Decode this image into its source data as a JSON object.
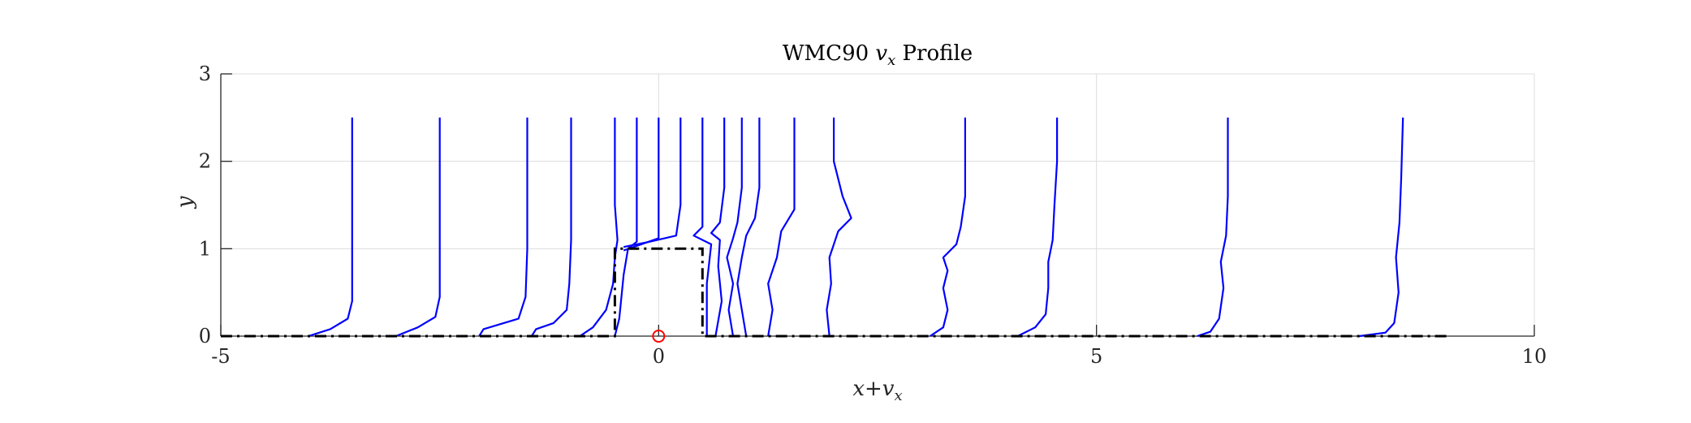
{
  "chart_data": {
    "type": "line",
    "title": "WMC90 v_x Profile",
    "title_parts": {
      "prefix": "WMC90",
      "var": "v",
      "sub": "x",
      "suffix": "Profile"
    },
    "xlabel": "x+v_x",
    "xlabel_parts": {
      "x": "x",
      "plus": "+",
      "var": "v",
      "sub": "x"
    },
    "ylabel": "y",
    "xlim": [
      -5,
      10
    ],
    "ylim": [
      0,
      3
    ],
    "xticks": [
      -5,
      0,
      5,
      10
    ],
    "yticks": [
      0,
      1,
      2,
      3
    ],
    "xtick_labels": [
      "-5",
      "0",
      "5",
      "10"
    ],
    "ytick_labels": [
      "0",
      "1",
      "2",
      "3"
    ],
    "grid": true,
    "colors": {
      "profiles": "#0000ff",
      "wall": "#000000",
      "origin_marker": "#ff0000",
      "grid": "#dcdcdc",
      "axes": "#262626"
    },
    "profiles": [
      {
        "x0": -3.5,
        "curve": [
          [
            -4.0,
            0.0
          ],
          [
            -3.75,
            0.08
          ],
          [
            -3.55,
            0.2
          ],
          [
            -3.5,
            0.4
          ],
          [
            -3.5,
            2.5
          ]
        ]
      },
      {
        "x0": -2.5,
        "curve": [
          [
            -3.0,
            0.0
          ],
          [
            -2.75,
            0.1
          ],
          [
            -2.55,
            0.22
          ],
          [
            -2.5,
            0.45
          ],
          [
            -2.5,
            2.5
          ]
        ]
      },
      {
        "x0": -1.5,
        "curve": [
          [
            -2.05,
            0.0
          ],
          [
            -2.0,
            0.08
          ],
          [
            -1.8,
            0.14
          ],
          [
            -1.6,
            0.2
          ],
          [
            -1.52,
            0.45
          ],
          [
            -1.5,
            1.0
          ],
          [
            -1.5,
            2.5
          ]
        ]
      },
      {
        "x0": -1.0,
        "curve": [
          [
            -1.45,
            0.0
          ],
          [
            -1.4,
            0.08
          ],
          [
            -1.2,
            0.15
          ],
          [
            -1.05,
            0.3
          ],
          [
            -1.02,
            0.6
          ],
          [
            -1.0,
            1.1
          ],
          [
            -1.0,
            2.5
          ]
        ]
      },
      {
        "x0": -0.5,
        "curve": [
          [
            -0.9,
            0.0
          ],
          [
            -0.75,
            0.1
          ],
          [
            -0.6,
            0.3
          ],
          [
            -0.52,
            0.6
          ],
          [
            -0.5,
            0.9
          ],
          [
            -0.47,
            1.1
          ],
          [
            -0.5,
            1.5
          ],
          [
            -0.5,
            2.5
          ]
        ]
      },
      {
        "x0": -0.25,
        "curve": [
          [
            -0.5,
            0.0
          ],
          [
            -0.45,
            0.2
          ],
          [
            -0.4,
            0.7
          ],
          [
            -0.35,
            1.0
          ],
          [
            -0.25,
            1.08
          ],
          [
            -0.25,
            1.5
          ],
          [
            -0.25,
            2.5
          ]
        ]
      },
      {
        "x0": 0.0,
        "curve": [
          [
            -0.4,
            0.98
          ],
          [
            -0.2,
            1.05
          ],
          [
            0.0,
            1.12
          ],
          [
            0.0,
            1.5
          ],
          [
            0.0,
            2.5
          ]
        ]
      },
      {
        "x0": 0.25,
        "curve": [
          [
            -0.4,
            1.02
          ],
          [
            -0.1,
            1.08
          ],
          [
            0.2,
            1.15
          ],
          [
            0.25,
            1.5
          ],
          [
            0.25,
            2.5
          ]
        ]
      },
      {
        "x0": 0.5,
        "curve": [
          [
            0.55,
            0.0
          ],
          [
            0.55,
            0.6
          ],
          [
            0.6,
            1.05
          ],
          [
            0.4,
            1.15
          ],
          [
            0.5,
            1.25
          ],
          [
            0.5,
            1.8
          ],
          [
            0.5,
            2.5
          ]
        ]
      },
      {
        "x0": 0.75,
        "curve": [
          [
            0.65,
            0.0
          ],
          [
            0.72,
            0.4
          ],
          [
            0.68,
            0.8
          ],
          [
            0.7,
            1.1
          ],
          [
            0.6,
            1.18
          ],
          [
            0.7,
            1.3
          ],
          [
            0.75,
            1.7
          ],
          [
            0.75,
            2.5
          ]
        ]
      },
      {
        "x0": 0.95,
        "curve": [
          [
            0.85,
            0.0
          ],
          [
            0.8,
            0.3
          ],
          [
            0.85,
            0.6
          ],
          [
            0.78,
            0.9
          ],
          [
            0.85,
            1.12
          ],
          [
            0.9,
            1.3
          ],
          [
            0.95,
            1.7
          ],
          [
            0.95,
            2.5
          ]
        ]
      },
      {
        "x0": 1.15,
        "curve": [
          [
            1.0,
            0.0
          ],
          [
            0.95,
            0.3
          ],
          [
            0.9,
            0.6
          ],
          [
            0.95,
            0.9
          ],
          [
            1.0,
            1.15
          ],
          [
            1.1,
            1.35
          ],
          [
            1.15,
            1.7
          ],
          [
            1.15,
            2.5
          ]
        ]
      },
      {
        "x0": 1.55,
        "curve": [
          [
            1.25,
            0.0
          ],
          [
            1.3,
            0.3
          ],
          [
            1.25,
            0.6
          ],
          [
            1.35,
            0.9
          ],
          [
            1.4,
            1.2
          ],
          [
            1.55,
            1.45
          ],
          [
            1.55,
            2.0
          ],
          [
            1.55,
            2.5
          ]
        ]
      },
      {
        "x0": 2.0,
        "curve": [
          [
            1.95,
            0.0
          ],
          [
            1.92,
            0.3
          ],
          [
            1.97,
            0.6
          ],
          [
            1.95,
            0.9
          ],
          [
            2.05,
            1.2
          ],
          [
            2.2,
            1.35
          ],
          [
            2.1,
            1.6
          ],
          [
            2.0,
            2.0
          ],
          [
            2.0,
            2.5
          ]
        ]
      },
      {
        "x0": 3.5,
        "curve": [
          [
            3.1,
            0.0
          ],
          [
            3.25,
            0.1
          ],
          [
            3.3,
            0.3
          ],
          [
            3.25,
            0.55
          ],
          [
            3.3,
            0.75
          ],
          [
            3.25,
            0.9
          ],
          [
            3.4,
            1.05
          ],
          [
            3.45,
            1.25
          ],
          [
            3.5,
            1.6
          ],
          [
            3.5,
            2.5
          ]
        ]
      },
      {
        "x0": 4.55,
        "curve": [
          [
            4.1,
            0.0
          ],
          [
            4.3,
            0.1
          ],
          [
            4.42,
            0.25
          ],
          [
            4.45,
            0.55
          ],
          [
            4.45,
            0.85
          ],
          [
            4.5,
            1.1
          ],
          [
            4.52,
            1.5
          ],
          [
            4.55,
            2.0
          ],
          [
            4.55,
            2.5
          ]
        ]
      },
      {
        "x0": 6.5,
        "curve": [
          [
            6.15,
            0.0
          ],
          [
            6.3,
            0.05
          ],
          [
            6.4,
            0.2
          ],
          [
            6.45,
            0.55
          ],
          [
            6.42,
            0.85
          ],
          [
            6.48,
            1.15
          ],
          [
            6.5,
            1.6
          ],
          [
            6.5,
            2.5
          ]
        ]
      },
      {
        "x0": 8.5,
        "curve": [
          [
            8.0,
            0.0
          ],
          [
            8.3,
            0.04
          ],
          [
            8.4,
            0.15
          ],
          [
            8.45,
            0.5
          ],
          [
            8.42,
            0.9
          ],
          [
            8.46,
            1.3
          ],
          [
            8.48,
            1.8
          ],
          [
            8.5,
            2.5
          ]
        ]
      }
    ],
    "wall_outline": [
      [
        -5,
        0
      ],
      [
        -0.5,
        0
      ],
      [
        -0.5,
        1
      ],
      [
        0.5,
        1
      ],
      [
        0.5,
        0
      ],
      [
        9,
        0
      ]
    ],
    "origin_marker": [
      0,
      0
    ]
  }
}
